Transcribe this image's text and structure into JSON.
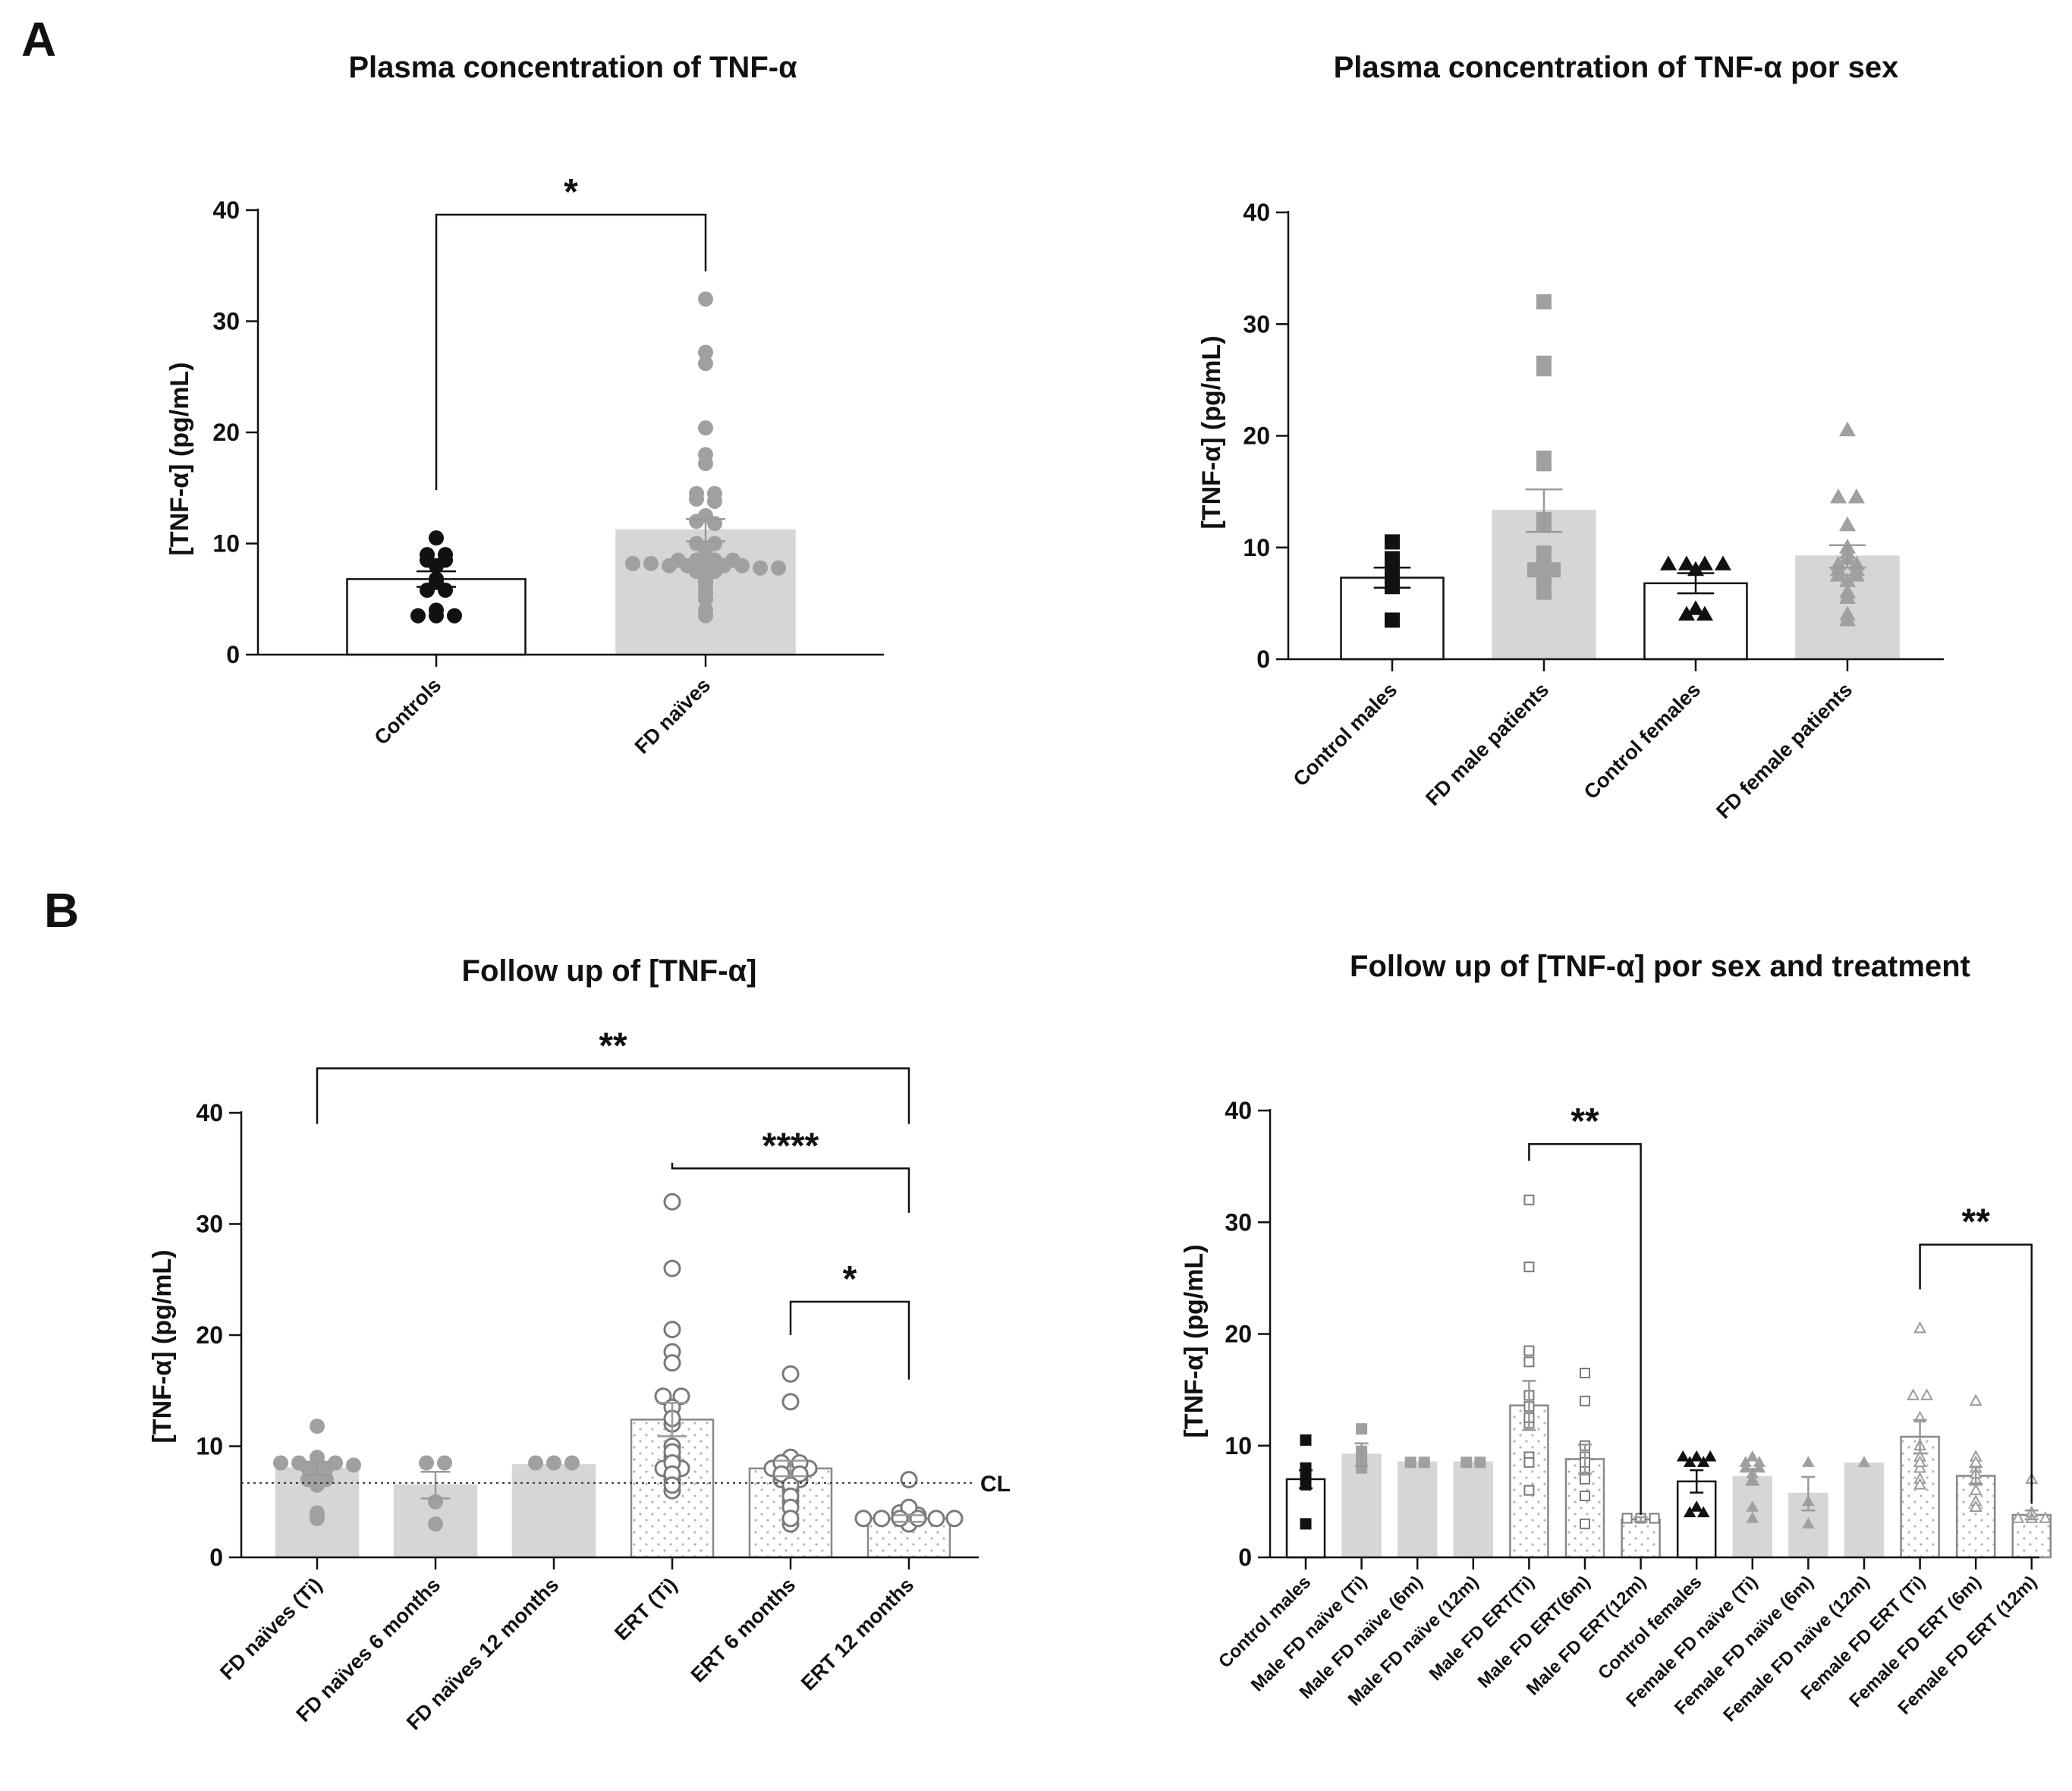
{
  "panel_labels": [
    "A",
    "B"
  ],
  "chart_data": [
    {
      "type": "bar",
      "title": "Plasma concentration of TNF-α",
      "ylabel": "[TNF-α] (pg/mL)",
      "ylim": [
        0,
        40
      ],
      "yticks": [
        "0",
        "10",
        "20",
        "30",
        "40"
      ],
      "categories": [
        "Controls",
        "FD naïves"
      ],
      "values": [
        6.8,
        11.2
      ],
      "sem": [
        0.7,
        1.0
      ],
      "bar_fills": [
        "#ffffff",
        "#d6d6d6"
      ],
      "bar_edges": [
        "#111111",
        "#d6d6d6"
      ],
      "marker_colors": [
        "#111111",
        "#a0a0a0"
      ],
      "markers": [
        "circle",
        "circle"
      ],
      "points": [
        [
          10.5,
          9.0,
          9.0,
          8.5,
          8.5,
          8.0,
          6.8,
          6.5,
          5.8,
          5.8,
          4.0,
          3.5,
          3.5,
          3.5
        ],
        [
          32.0,
          27.2,
          26.2,
          20.4,
          18.0,
          17.2,
          14.5,
          14.5,
          14.0,
          13.8,
          12.5,
          12.0,
          11.8,
          10.0,
          10.0,
          9.5,
          9.0,
          8.5,
          8.5,
          8.5,
          8.5,
          8.2,
          8.2,
          8.0,
          8.0,
          8.0,
          8.0,
          8.0,
          7.8,
          7.8,
          7.5,
          7.5,
          6.8,
          6.5,
          6.0,
          5.5,
          5.0,
          4.0,
          3.5
        ]
      ],
      "significance": [
        {
          "from": 0,
          "to": 1,
          "label": "*"
        }
      ]
    },
    {
      "type": "bar",
      "title": "Plasma concentration of TNF-α por sex",
      "ylabel": "[TNF-α] (pg/mL)",
      "ylim": [
        0,
        40
      ],
      "yticks": [
        "0",
        "10",
        "20",
        "30",
        "40"
      ],
      "categories": [
        "Control males",
        "FD male patients",
        "Control females",
        "FD female patients"
      ],
      "values": [
        7.3,
        13.3,
        6.8,
        9.2
      ],
      "sem": [
        0.9,
        1.9,
        0.9,
        1.0
      ],
      "bar_fills": [
        "#ffffff",
        "#d6d6d6",
        "#ffffff",
        "#d6d6d6"
      ],
      "bar_edges": [
        "#111111",
        "#d6d6d6",
        "#111111",
        "#d6d6d6"
      ],
      "marker_colors": [
        "#111111",
        "#a0a0a0",
        "#111111",
        "#a0a0a0"
      ],
      "markers": [
        "square",
        "square",
        "triangle",
        "triangle"
      ],
      "points": [
        [
          10.5,
          9.0,
          8.0,
          7.5,
          6.5,
          3.5
        ],
        [
          32.0,
          26.5,
          26.0,
          18.0,
          17.5,
          12.5,
          12.0,
          9.5,
          9.0,
          8.5,
          8.0,
          8.0,
          7.5,
          7.0,
          6.5,
          6.0
        ],
        [
          8.5,
          8.5,
          8.5,
          8.5,
          8.0,
          4.5,
          4.0,
          4.0
        ],
        [
          20.5,
          14.5,
          14.5,
          12.0,
          10.0,
          9.5,
          9.0,
          8.5,
          8.5,
          8.0,
          8.0,
          7.5,
          7.5,
          7.0,
          6.0,
          5.5,
          4.0,
          3.5
        ]
      ]
    },
    {
      "type": "bar",
      "title": "Follow up of [TNF-α]",
      "ylabel": "[TNF-α] (pg/mL)",
      "ylim": [
        0,
        40
      ],
      "yticks": [
        "0",
        "10",
        "20",
        "30",
        "40"
      ],
      "categories": [
        "FD naïves (Ti)",
        "FD naïves 6 months",
        "FD naïves 12 months",
        "ERT (Ti)",
        "ERT 6 months",
        "ERT 12 months"
      ],
      "values": [
        8.0,
        6.5,
        8.3,
        12.4,
        8.0,
        3.5
      ],
      "sem": [
        0.6,
        1.2,
        0.0,
        1.5,
        0.7,
        0.3
      ],
      "bar_fills": [
        "#d6d6d6",
        "#d6d6d6",
        "#d6d6d6",
        "dots",
        "dots",
        "dots"
      ],
      "bar_edges": [
        "#d6d6d6",
        "#d6d6d6",
        "#d6d6d6",
        "#888888",
        "#888888",
        "#888888"
      ],
      "marker_colors": [
        "#a0a0a0",
        "#a0a0a0",
        "#a0a0a0",
        "#7a7a7a",
        "#7a7a7a",
        "#7a7a7a"
      ],
      "markers": [
        "circle",
        "circle",
        "circle",
        "open-circle",
        "open-circle",
        "open-circle"
      ],
      "points": [
        [
          11.8,
          9.0,
          8.5,
          8.5,
          8.5,
          8.5,
          8.3,
          8.0,
          8.0,
          7.5,
          7.0,
          7.0,
          6.5,
          4.0,
          3.5
        ],
        [
          8.5,
          8.5,
          5.0,
          3.0
        ],
        [
          8.5,
          8.5,
          8.5
        ],
        [
          32.0,
          26.0,
          20.5,
          18.5,
          17.5,
          14.5,
          14.5,
          13.5,
          12.5,
          12.0,
          10.0,
          9.5,
          9.0,
          8.5,
          8.0,
          8.0,
          7.5,
          7.0,
          6.5,
          6.0
        ],
        [
          16.5,
          14.0,
          9.0,
          8.5,
          8.5,
          8.0,
          8.0,
          8.0,
          7.5,
          7.5,
          7.0,
          7.0,
          6.5,
          6.0,
          5.5,
          5.0,
          4.5,
          3.5,
          3.0
        ],
        [
          7.0,
          4.5,
          4.0,
          3.8,
          3.5,
          3.5,
          3.5,
          3.5,
          3.5,
          3.5,
          3.0
        ]
      ],
      "reference_line": {
        "y": 6.7,
        "label": "CL"
      },
      "significance": [
        {
          "from": 0,
          "to": 5,
          "label": "**",
          "y": 44
        },
        {
          "from": 3,
          "to": 5,
          "label": "****",
          "y": 35
        },
        {
          "from": 4,
          "to": 5,
          "label": "*",
          "y": 23
        }
      ]
    },
    {
      "type": "bar",
      "title": "Follow up of [TNF-α] por sex and treatment",
      "ylabel": "[TNF-α] (pg/mL)",
      "ylim": [
        0,
        40
      ],
      "yticks": [
        "0",
        "10",
        "20",
        "30",
        "40"
      ],
      "categories": [
        "Control males",
        "Male FD naïve (Ti)",
        "Male FD naïve (6m)",
        "Male FD naïve (12m)",
        "Male FD ERT(Ti)",
        "Male FD ERT(6m)",
        "Male FD ERT(12m)",
        "Control females",
        "Female FD naïve (Ti)",
        "Female FD naïve (6m)",
        "Female FD naïve (12m)",
        "Female FD ERT (Ti)",
        "Female FD ERT (6m)",
        "Female FD ERT (12m)"
      ],
      "values": [
        7.0,
        9.2,
        8.5,
        8.5,
        13.6,
        8.8,
        3.4,
        6.8,
        7.2,
        5.7,
        8.4,
        10.8,
        7.3,
        3.8
      ],
      "sem": [
        0.8,
        1.0,
        0.0,
        0.0,
        2.2,
        1.3,
        0.2,
        1.0,
        0.7,
        1.5,
        0.0,
        1.5,
        0.8,
        0.4
      ],
      "bar_fills": [
        "#ffffff",
        "#d6d6d6",
        "#d6d6d6",
        "#d6d6d6",
        "dots",
        "dots",
        "dots",
        "#ffffff",
        "#d6d6d6",
        "#d6d6d6",
        "#d6d6d6",
        "dots",
        "dots",
        "dots"
      ],
      "bar_edges": [
        "#111111",
        "#d6d6d6",
        "#d6d6d6",
        "#d6d6d6",
        "#888888",
        "#888888",
        "#888888",
        "#111111",
        "#d6d6d6",
        "#d6d6d6",
        "#d6d6d6",
        "#888888",
        "#888888",
        "#888888"
      ],
      "marker_colors": [
        "#111111",
        "#a0a0a0",
        "#a0a0a0",
        "#a0a0a0",
        "#7a7a7a",
        "#7a7a7a",
        "#7a7a7a",
        "#111111",
        "#a0a0a0",
        "#a0a0a0",
        "#a0a0a0",
        "#9a9a9a",
        "#9a9a9a",
        "#9a9a9a"
      ],
      "markers": [
        "square",
        "square",
        "square",
        "square",
        "open-square",
        "open-square",
        "open-square",
        "triangle",
        "triangle",
        "triangle",
        "triangle",
        "open-triangle",
        "open-triangle",
        "open-triangle"
      ],
      "points": [
        [
          10.5,
          8.0,
          7.5,
          7.0,
          6.5,
          3.0
        ],
        [
          11.5,
          9.5,
          9.0,
          8.5,
          8.0
        ],
        [
          8.5,
          8.5
        ],
        [
          8.5,
          8.5
        ],
        [
          32.0,
          26.0,
          18.5,
          17.5,
          14.5,
          13.5,
          12.5,
          12.0,
          9.0,
          8.5,
          6.0
        ],
        [
          16.5,
          14.0,
          10.0,
          9.0,
          8.5,
          8.0,
          7.0,
          5.5,
          3.0
        ],
        [
          3.5,
          3.5,
          3.5
        ],
        [
          9.0,
          9.0,
          9.0,
          8.5,
          8.5,
          4.5,
          4.0,
          4.0
        ],
        [
          9.0,
          8.5,
          8.5,
          8.0,
          8.0,
          7.5,
          7.0,
          4.5,
          3.5
        ],
        [
          8.5,
          5.0,
          3.0
        ],
        [
          8.5
        ],
        [
          20.5,
          14.5,
          14.5,
          12.5,
          10.0,
          9.0,
          8.5,
          8.0,
          7.0,
          6.5
        ],
        [
          14.0,
          9.0,
          8.5,
          8.0,
          7.5,
          7.0,
          6.0,
          5.0,
          4.5
        ],
        [
          7.0,
          4.0,
          3.5,
          3.5,
          3.5
        ]
      ],
      "significance": [
        {
          "from": 4,
          "to": 6,
          "label": "**",
          "y": 37
        },
        {
          "from": 11,
          "to": 13,
          "label": "**",
          "y": 28
        }
      ]
    }
  ]
}
